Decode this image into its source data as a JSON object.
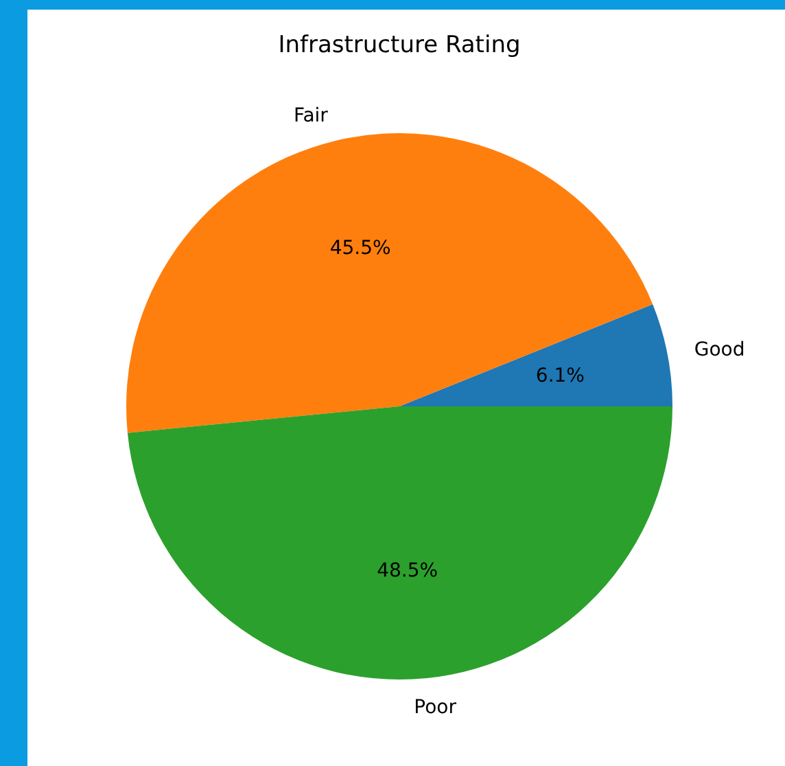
{
  "chart_data": {
    "type": "pie",
    "title": "Infrastructure Rating",
    "categories": [
      "Good",
      "Fair",
      "Poor"
    ],
    "values": [
      6.1,
      45.5,
      48.5
    ],
    "colors": [
      "#1f77b4",
      "#ff7f0e",
      "#2ca02c"
    ],
    "value_labels": [
      "6.1%",
      "45.5%",
      "48.5%"
    ]
  }
}
